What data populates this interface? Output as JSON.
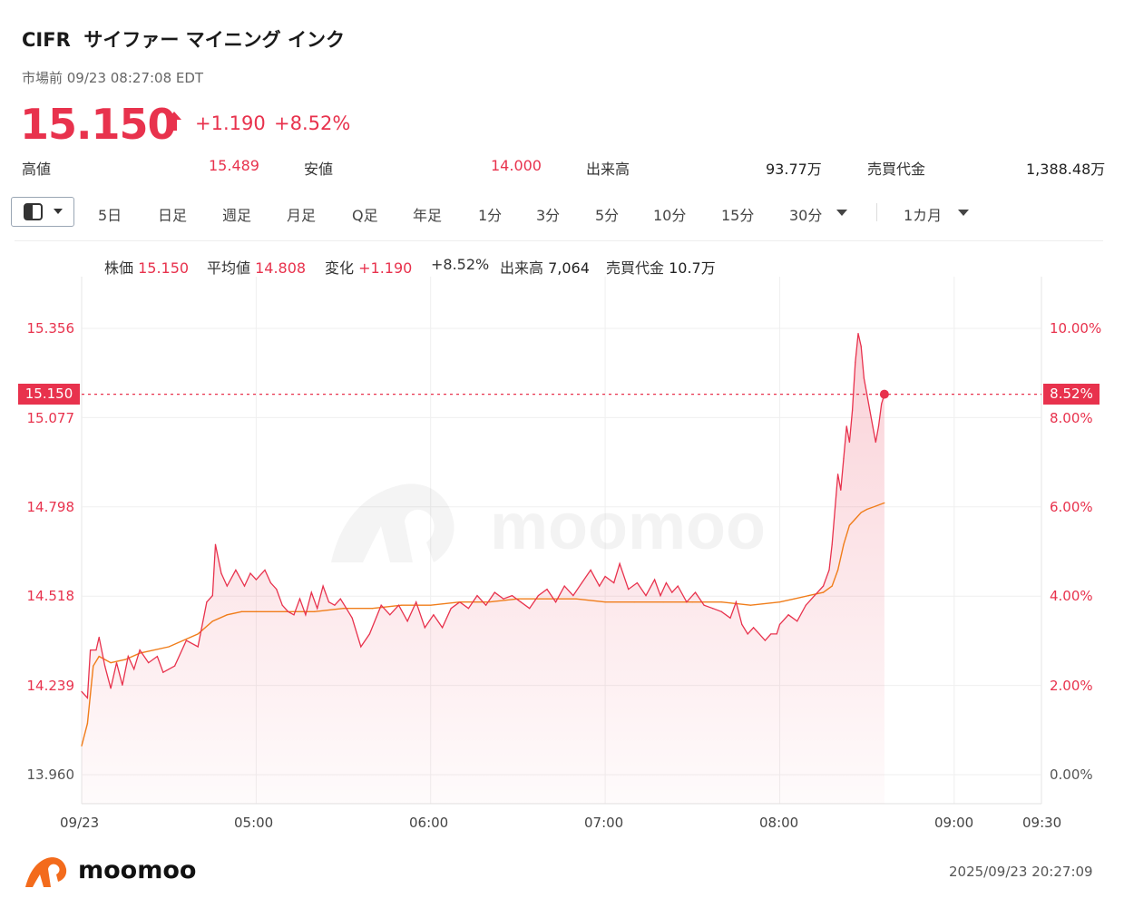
{
  "header": {
    "ticker": "CIFR",
    "company": "サイファー マイニング インク",
    "session": "市場前 09/23 08:27:08 EDT",
    "price": "15.150",
    "change": "+1.190",
    "change_pct": "+8.52%"
  },
  "stats": [
    {
      "label": "高値",
      "value": "15.489"
    },
    {
      "label": "安値",
      "value": "14.000"
    },
    {
      "label": "出来高",
      "value": "93.77万"
    },
    {
      "label": "売買代金",
      "value": "1,388.48万"
    }
  ],
  "toolbar": {
    "timeframes": [
      "5日",
      "日足",
      "週足",
      "月足",
      "Q足",
      "年足",
      "1分",
      "3分",
      "5分",
      "10分",
      "15分",
      "30分"
    ],
    "period": "1カ月"
  },
  "info_bar": {
    "price_label": "株価",
    "price": "15.150",
    "avg_label": "平均値",
    "avg": "14.808",
    "chg_label": "変化",
    "chg": "+1.190",
    "chg_pct": "+8.52%",
    "vol_label": "出来高",
    "vol": "7,064",
    "amt_label": "売買代金",
    "amt": "10.7万"
  },
  "footer": {
    "brand": "moomoo",
    "timestamp": "2025/09/23 20:27:09"
  },
  "watermark": "moomoo",
  "colors": {
    "up": "#e8324d",
    "avg": "#f07d1a",
    "grid": "#ececec"
  },
  "chart_data": {
    "type": "line",
    "x_ticks": [
      "09/23",
      "05:00",
      "06:00",
      "07:00",
      "08:00",
      "09:00",
      "09:30"
    ],
    "y_ticks_left": [
      "15.356",
      "15.077",
      "14.798",
      "14.518",
      "14.239",
      "13.960"
    ],
    "y_ticks_right": [
      "10.00%",
      "8.00%",
      "6.00%",
      "4.00%",
      "2.00%",
      "0.00%"
    ],
    "ylim": [
      13.96,
      15.356
    ],
    "current_price_label": "15.150",
    "current_pct_label": "8.52%",
    "series": [
      {
        "name": "株価",
        "points": [
          [
            "04:00",
            14.22
          ],
          [
            "04:02",
            14.2
          ],
          [
            "04:03",
            14.35
          ],
          [
            "04:05",
            14.35
          ],
          [
            "04:06",
            14.39
          ],
          [
            "04:08",
            14.3
          ],
          [
            "04:10",
            14.23
          ],
          [
            "04:12",
            14.31
          ],
          [
            "04:14",
            14.24
          ],
          [
            "04:16",
            14.33
          ],
          [
            "04:18",
            14.29
          ],
          [
            "04:20",
            14.35
          ],
          [
            "04:23",
            14.31
          ],
          [
            "04:26",
            14.33
          ],
          [
            "04:28",
            14.28
          ],
          [
            "04:32",
            14.3
          ],
          [
            "04:36",
            14.38
          ],
          [
            "04:40",
            14.36
          ],
          [
            "04:43",
            14.5
          ],
          [
            "04:45",
            14.52
          ],
          [
            "04:46",
            14.68
          ],
          [
            "04:48",
            14.59
          ],
          [
            "04:50",
            14.55
          ],
          [
            "04:53",
            14.6
          ],
          [
            "04:56",
            14.55
          ],
          [
            "04:58",
            14.59
          ],
          [
            "05:00",
            14.57
          ],
          [
            "05:03",
            14.6
          ],
          [
            "05:05",
            14.56
          ],
          [
            "05:07",
            14.54
          ],
          [
            "05:09",
            14.49
          ],
          [
            "05:11",
            14.47
          ],
          [
            "05:13",
            14.46
          ],
          [
            "05:15",
            14.51
          ],
          [
            "05:17",
            14.46
          ],
          [
            "05:19",
            14.53
          ],
          [
            "05:21",
            14.48
          ],
          [
            "05:23",
            14.55
          ],
          [
            "05:25",
            14.5
          ],
          [
            "05:27",
            14.49
          ],
          [
            "05:29",
            14.51
          ],
          [
            "05:31",
            14.48
          ],
          [
            "05:33",
            14.45
          ],
          [
            "05:36",
            14.36
          ],
          [
            "05:39",
            14.4
          ],
          [
            "05:43",
            14.49
          ],
          [
            "05:46",
            14.46
          ],
          [
            "05:49",
            14.49
          ],
          [
            "05:52",
            14.44
          ],
          [
            "05:55",
            14.5
          ],
          [
            "05:58",
            14.42
          ],
          [
            "06:01",
            14.46
          ],
          [
            "06:04",
            14.42
          ],
          [
            "06:07",
            14.48
          ],
          [
            "06:10",
            14.5
          ],
          [
            "06:13",
            14.48
          ],
          [
            "06:16",
            14.52
          ],
          [
            "06:19",
            14.49
          ],
          [
            "06:22",
            14.53
          ],
          [
            "06:25",
            14.51
          ],
          [
            "06:28",
            14.52
          ],
          [
            "06:31",
            14.5
          ],
          [
            "06:34",
            14.48
          ],
          [
            "06:37",
            14.52
          ],
          [
            "06:40",
            14.54
          ],
          [
            "06:43",
            14.5
          ],
          [
            "06:46",
            14.55
          ],
          [
            "06:49",
            14.52
          ],
          [
            "06:52",
            14.56
          ],
          [
            "06:55",
            14.6
          ],
          [
            "06:58",
            14.55
          ],
          [
            "07:00",
            14.58
          ],
          [
            "07:03",
            14.56
          ],
          [
            "07:05",
            14.62
          ],
          [
            "07:08",
            14.54
          ],
          [
            "07:11",
            14.56
          ],
          [
            "07:14",
            14.52
          ],
          [
            "07:17",
            14.57
          ],
          [
            "07:19",
            14.52
          ],
          [
            "07:21",
            14.56
          ],
          [
            "07:23",
            14.53
          ],
          [
            "07:25",
            14.55
          ],
          [
            "07:28",
            14.5
          ],
          [
            "07:31",
            14.53
          ],
          [
            "07:34",
            14.49
          ],
          [
            "07:37",
            14.48
          ],
          [
            "07:40",
            14.47
          ],
          [
            "07:43",
            14.45
          ],
          [
            "07:45",
            14.5
          ],
          [
            "07:47",
            14.43
          ],
          [
            "07:49",
            14.4
          ],
          [
            "07:51",
            14.42
          ],
          [
            "07:53",
            14.4
          ],
          [
            "07:55",
            14.38
          ],
          [
            "07:57",
            14.4
          ],
          [
            "07:59",
            14.4
          ],
          [
            "08:00",
            14.43
          ],
          [
            "08:03",
            14.46
          ],
          [
            "08:06",
            14.44
          ],
          [
            "08:09",
            14.49
          ],
          [
            "08:12",
            14.52
          ],
          [
            "08:15",
            14.55
          ],
          [
            "08:17",
            14.6
          ],
          [
            "08:18",
            14.68
          ],
          [
            "08:20",
            14.9
          ],
          [
            "08:21",
            14.85
          ],
          [
            "08:22",
            14.95
          ],
          [
            "08:23",
            15.05
          ],
          [
            "08:24",
            15.0
          ],
          [
            "08:25",
            15.1
          ],
          [
            "08:26",
            15.25
          ],
          [
            "08:27",
            15.34
          ],
          [
            "08:28",
            15.3
          ],
          [
            "08:29",
            15.2
          ],
          [
            "08:30",
            15.15
          ],
          [
            "08:31",
            15.1
          ],
          [
            "08:32",
            15.05
          ],
          [
            "08:33",
            15.0
          ],
          [
            "08:34",
            15.05
          ],
          [
            "08:35",
            15.12
          ],
          [
            "08:36",
            15.15
          ]
        ]
      },
      {
        "name": "平均値",
        "points": [
          [
            "04:00",
            14.05
          ],
          [
            "04:02",
            14.12
          ],
          [
            "04:04",
            14.3
          ],
          [
            "04:06",
            14.33
          ],
          [
            "04:10",
            14.31
          ],
          [
            "04:15",
            14.32
          ],
          [
            "04:20",
            14.34
          ],
          [
            "04:30",
            14.36
          ],
          [
            "04:40",
            14.4
          ],
          [
            "04:45",
            14.44
          ],
          [
            "04:50",
            14.46
          ],
          [
            "04:55",
            14.47
          ],
          [
            "05:00",
            14.47
          ],
          [
            "05:10",
            14.47
          ],
          [
            "05:20",
            14.47
          ],
          [
            "05:30",
            14.48
          ],
          [
            "05:40",
            14.48
          ],
          [
            "05:50",
            14.49
          ],
          [
            "06:00",
            14.49
          ],
          [
            "06:10",
            14.5
          ],
          [
            "06:20",
            14.5
          ],
          [
            "06:30",
            14.51
          ],
          [
            "06:40",
            14.51
          ],
          [
            "06:50",
            14.51
          ],
          [
            "07:00",
            14.5
          ],
          [
            "07:10",
            14.5
          ],
          [
            "07:20",
            14.5
          ],
          [
            "07:30",
            14.5
          ],
          [
            "07:40",
            14.5
          ],
          [
            "07:50",
            14.49
          ],
          [
            "08:00",
            14.5
          ],
          [
            "08:05",
            14.51
          ],
          [
            "08:10",
            14.52
          ],
          [
            "08:15",
            14.53
          ],
          [
            "08:18",
            14.55
          ],
          [
            "08:20",
            14.6
          ],
          [
            "08:22",
            14.68
          ],
          [
            "08:24",
            14.74
          ],
          [
            "08:26",
            14.76
          ],
          [
            "08:28",
            14.78
          ],
          [
            "08:30",
            14.79
          ],
          [
            "08:33",
            14.8
          ],
          [
            "08:36",
            14.81
          ]
        ]
      }
    ]
  }
}
